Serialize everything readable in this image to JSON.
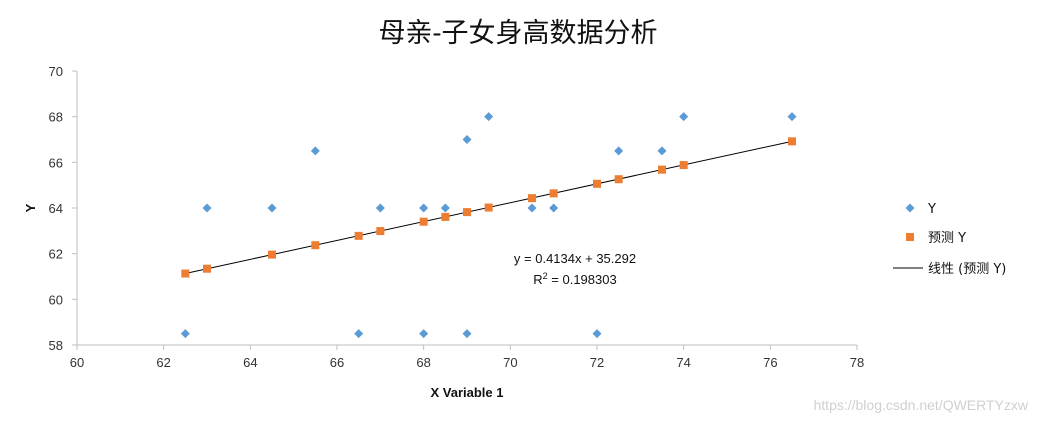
{
  "chart_data": {
    "type": "scatter",
    "title": "母亲-子女身高数据分析",
    "xlabel": "X Variable 1",
    "ylabel": "Y",
    "xlim": [
      60,
      78
    ],
    "ylim": [
      58,
      70
    ],
    "x_ticks": [
      "60",
      "62",
      "64",
      "66",
      "68",
      "70",
      "72",
      "74",
      "76",
      "78"
    ],
    "y_ticks": [
      "58",
      "60",
      "62",
      "64",
      "66",
      "68",
      "70"
    ],
    "grid": false,
    "legend_position": "right",
    "series": [
      {
        "name": "Y",
        "marker": "diamond",
        "color": "#5b9bd5",
        "points": [
          [
            62.5,
            58.5
          ],
          [
            63,
            64
          ],
          [
            64.5,
            64
          ],
          [
            65.5,
            66.5
          ],
          [
            66.5,
            58.5
          ],
          [
            67,
            64
          ],
          [
            68,
            64
          ],
          [
            68,
            58.5
          ],
          [
            68.5,
            64
          ],
          [
            69,
            67
          ],
          [
            69,
            58.5
          ],
          [
            69.5,
            68
          ],
          [
            70.5,
            64
          ],
          [
            71,
            64
          ],
          [
            72,
            58.5
          ],
          [
            72.5,
            66.5
          ],
          [
            73.5,
            66.5
          ],
          [
            74,
            68
          ],
          [
            76.5,
            68
          ]
        ]
      },
      {
        "name": "预测 Y",
        "marker": "square",
        "color": "#ed7d31",
        "points": [
          [
            62.5,
            61.13
          ],
          [
            63,
            61.34
          ],
          [
            64.5,
            61.96
          ],
          [
            65.5,
            62.37
          ],
          [
            66.5,
            62.78
          ],
          [
            67,
            62.99
          ],
          [
            68,
            63.4
          ],
          [
            68.5,
            63.61
          ],
          [
            69,
            63.82
          ],
          [
            69.5,
            64.02
          ],
          [
            70.5,
            64.43
          ],
          [
            71,
            64.64
          ],
          [
            72,
            65.06
          ],
          [
            72.5,
            65.26
          ],
          [
            73.5,
            65.68
          ],
          [
            74,
            65.88
          ],
          [
            76.5,
            66.92
          ]
        ]
      },
      {
        "name": "线性 (预测 Y)",
        "type": "line",
        "color": "#000000",
        "x": [
          62.5,
          76.5
        ],
        "y": [
          61.13,
          66.92
        ]
      }
    ],
    "annotations": {
      "equation": "y = 0.4134x + 35.292",
      "r2_prefix": "R",
      "r2_sup": "2",
      "r2_suffix": " = 0.198303"
    }
  },
  "watermark": "https://blog.csdn.net/QWERTYzxw"
}
